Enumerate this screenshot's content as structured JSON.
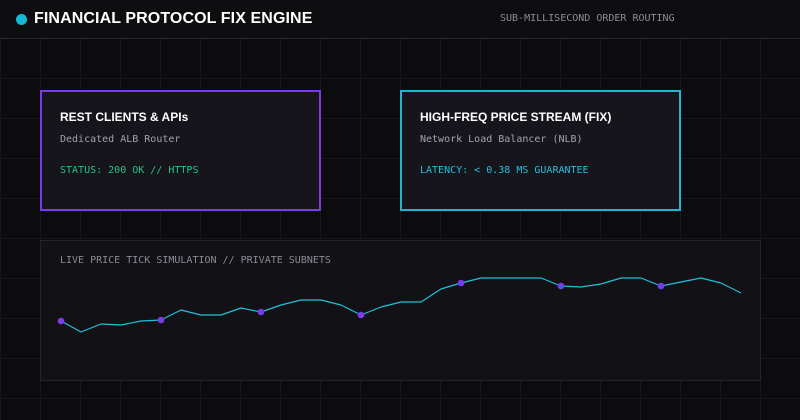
{
  "header": {
    "title": "FINANCIAL PROTOCOL FIX ENGINE",
    "subtitle": "SUB-MILLISECOND ORDER ROUTING",
    "accent_color": "#14b8d4"
  },
  "cards": [
    {
      "title": "REST CLIENTS & APIs",
      "description": "Dedicated ALB Router",
      "status": "STATUS: 200 OK // HTTPS",
      "border_color": "#7c3aed",
      "status_color": "#22c58a"
    },
    {
      "title": "HIGH-FREQ PRICE STREAM (FIX)",
      "description": "Network Load Balancer (NLB)",
      "status": "LATENCY: < 0.38 MS GUARANTEE",
      "border_color": "#1fb5d4",
      "status_color": "#22c0dc"
    }
  ],
  "chart_panel": {
    "label": "LIVE PRICE TICK SIMULATION // PRIVATE SUBNETS"
  },
  "chart_data": {
    "type": "line",
    "title": "",
    "xlabel": "",
    "ylabel": "",
    "line_color": "#22c0dc",
    "marker_color": "#7c3aed",
    "ylim": [
      0,
      100
    ],
    "values": [
      40,
      29,
      37,
      36,
      40,
      41,
      51,
      46,
      46,
      53,
      49,
      56,
      61,
      61,
      56,
      46,
      54,
      59,
      59,
      72,
      78,
      83,
      83,
      83,
      83,
      75,
      74,
      77,
      83,
      83,
      75,
      79,
      83,
      78,
      68
    ],
    "marker_indices": [
      0,
      5,
      10,
      15,
      20,
      25,
      30
    ]
  }
}
